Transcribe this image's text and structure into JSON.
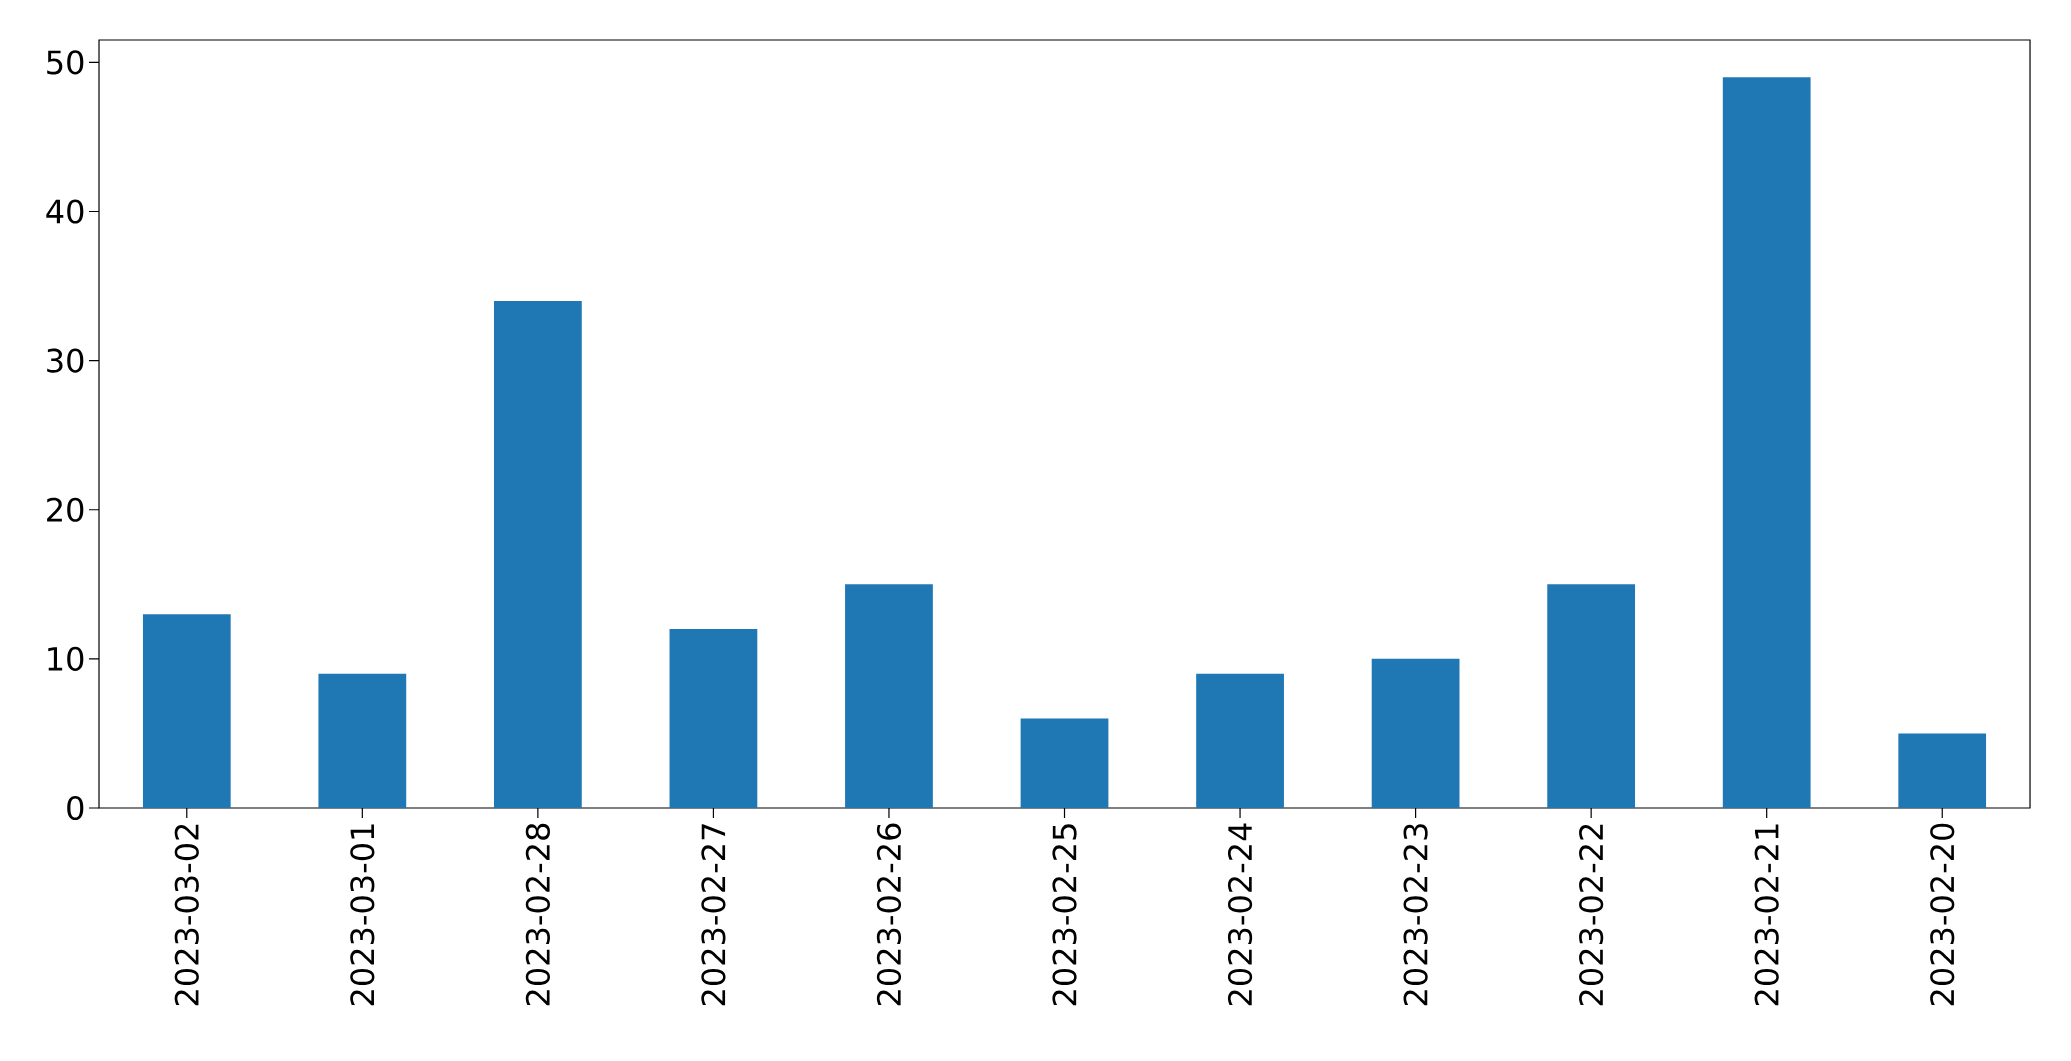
{
  "chart_data": {
    "type": "bar",
    "categories": [
      "2023-03-02",
      "2023-03-01",
      "2023-02-28",
      "2023-02-27",
      "2023-02-26",
      "2023-02-25",
      "2023-02-24",
      "2023-02-23",
      "2023-02-22",
      "2023-02-21",
      "2023-02-20"
    ],
    "values": [
      13,
      9,
      34,
      12,
      15,
      6,
      9,
      10,
      15,
      49,
      5
    ],
    "color": "#1f77b4",
    "ylim": [
      0,
      51.5
    ],
    "yticks": [
      0,
      10,
      20,
      30,
      40,
      50
    ]
  }
}
